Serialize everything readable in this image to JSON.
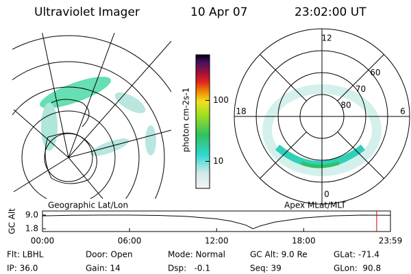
{
  "header": {
    "instrument": "Ultraviolet Imager",
    "date": "10 Apr 07",
    "time": "23:02:00 UT"
  },
  "geo_panel": {
    "label": "Geographic Lat/Lon"
  },
  "colorbar": {
    "unit_label": "photon cm-2s-1",
    "ticks": [
      10,
      100
    ],
    "lim": [
      3.6,
      560
    ],
    "log": true
  },
  "polar_panel": {
    "label": "Apex MLat/MLT",
    "mlt_ticks": [
      0,
      6,
      12,
      18
    ],
    "mlat_ticks": [
      60,
      70,
      80
    ],
    "mlat_lim": [
      50,
      90
    ]
  },
  "altitude_plot": {
    "y_label": "GC Alt",
    "yticks": [
      {
        "value": 9.0,
        "label": "9.0"
      },
      {
        "value": 1.8,
        "label": "1.8"
      }
    ],
    "ylim": [
      1.8,
      9.0
    ],
    "xticks": [
      {
        "value": 0,
        "label": "00:00"
      },
      {
        "value": 6,
        "label": "06:00"
      },
      {
        "value": 12,
        "label": "12:00"
      },
      {
        "value": 18,
        "label": "18:00"
      },
      {
        "value": 23.98,
        "label": "23:59"
      }
    ],
    "xlim": [
      0,
      23.98
    ],
    "x": [
      0,
      2,
      4,
      6,
      8,
      10,
      12,
      13,
      14,
      14.5,
      15,
      16,
      18,
      20,
      22,
      23.98
    ],
    "values": [
      8.6,
      8.9,
      9.0,
      9.0,
      8.8,
      8.3,
      7.0,
      5.8,
      3.8,
      1.8,
      3.3,
      5.3,
      7.5,
      8.6,
      9.0,
      8.9
    ],
    "current_time": 23.03,
    "current_color": "#cc0000"
  },
  "info": {
    "rows": [
      [
        "Flt: LBHL",
        "Door: Open",
        "Mode: Normal",
        "GC Alt: 9.0 Re",
        "GLat: -71.4"
      ],
      [
        "IP: 36.0",
        "Gain: 14",
        "Dsp:   -0.1",
        "Seq: 39",
        "GLon:  90.8"
      ]
    ]
  }
}
